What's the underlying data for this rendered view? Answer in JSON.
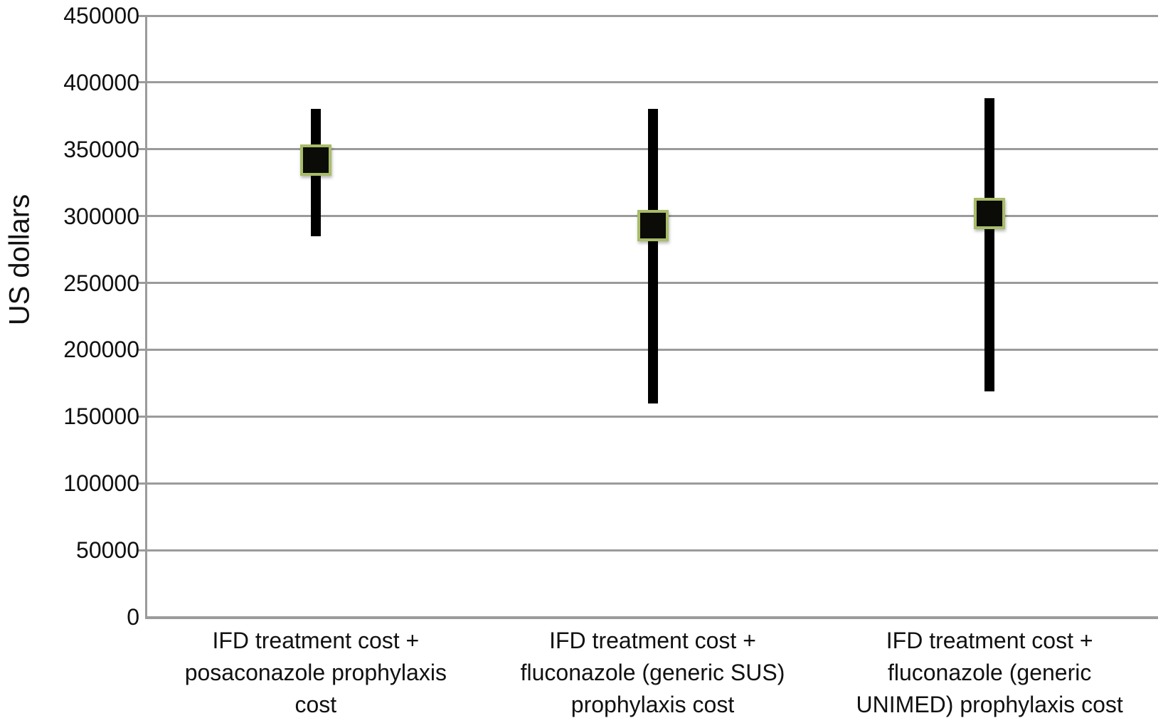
{
  "chart_data": {
    "type": "stock_hilo",
    "title": "",
    "ylabel": "US dollars",
    "xlabel": "",
    "ylim": [
      0,
      450000
    ],
    "ytick_step": 50000,
    "ytick_labels": [
      "0",
      "50000",
      "100000",
      "150000",
      "200000",
      "250000",
      "300000",
      "350000",
      "400000",
      "450000"
    ],
    "grid": true,
    "legend": "none",
    "categories": [
      "IFD treatment cost +\nposaconazole prophylaxis\ncost",
      "IFD treatment cost +\nfluconazole (generic SUS)\nprophylaxis cost",
      "IFD treatment cost +\nfluconazole (generic\nUNIMED) prophylaxis cost"
    ],
    "series": [
      {
        "name": "upper bound",
        "values": [
          380000,
          380000,
          388000
        ]
      },
      {
        "name": "point estimate",
        "values": [
          342000,
          293000,
          302000
        ]
      },
      {
        "name": "lower bound",
        "values": [
          285000,
          160000,
          169000
        ]
      }
    ],
    "colors": {
      "range_bar": "#000000",
      "marker_fill": "#0b0b08",
      "marker_border": "#a8bc68",
      "gridline": "#9b9b9b",
      "axis": "#9b9b9b",
      "text": "#111111",
      "background": "#ffffff"
    }
  }
}
